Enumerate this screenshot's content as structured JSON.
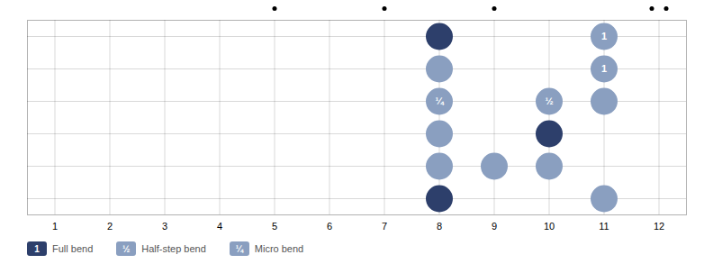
{
  "chart_data": {
    "type": "scatter",
    "x": [
      8,
      8,
      8,
      8,
      8,
      8,
      9,
      10,
      10,
      10,
      11,
      11,
      11,
      11
    ],
    "y": [
      1,
      2,
      3,
      4,
      5,
      6,
      5,
      3,
      4,
      5,
      1,
      2,
      3,
      6
    ],
    "colors": [
      "#2d3f6b",
      "#8a9fc0",
      "#8a9fc0",
      "#8a9fc0",
      "#8a9fc0",
      "#2d3f6b",
      "#8a9fc0",
      "#8a9fc0",
      "#2d3f6b",
      "#8a9fc0",
      "#8a9fc0",
      "#8a9fc0",
      "#8a9fc0",
      "#8a9fc0"
    ],
    "annotations": [
      {
        "x": 8,
        "y": 3,
        "text": "¼"
      },
      {
        "x": 10,
        "y": 3,
        "text": "½"
      },
      {
        "x": 11,
        "y": 1,
        "text": "1"
      },
      {
        "x": 11,
        "y": 2,
        "text": "1"
      }
    ],
    "xlim": [
      0.5,
      12.5
    ],
    "xticks": [
      1,
      2,
      3,
      4,
      5,
      6,
      7,
      8,
      9,
      10,
      11,
      12
    ],
    "ylim": [
      6.5,
      0.5
    ],
    "yticks": [
      1,
      2,
      3,
      4,
      5,
      6
    ],
    "grid": true,
    "tick_labels": "x",
    "position_markers": [
      5,
      7,
      9,
      12
    ],
    "double_markers": [
      12
    ],
    "legend": "bottom",
    "legend_items": [
      {
        "name": "Full bend",
        "text": "1",
        "color": "#2d3f6b"
      },
      {
        "name": "Half-step bend",
        "text": "½",
        "color": "#8a9fc0"
      },
      {
        "name": "Micro bend",
        "text": "¼",
        "color": "#8a9fc0"
      }
    ]
  }
}
